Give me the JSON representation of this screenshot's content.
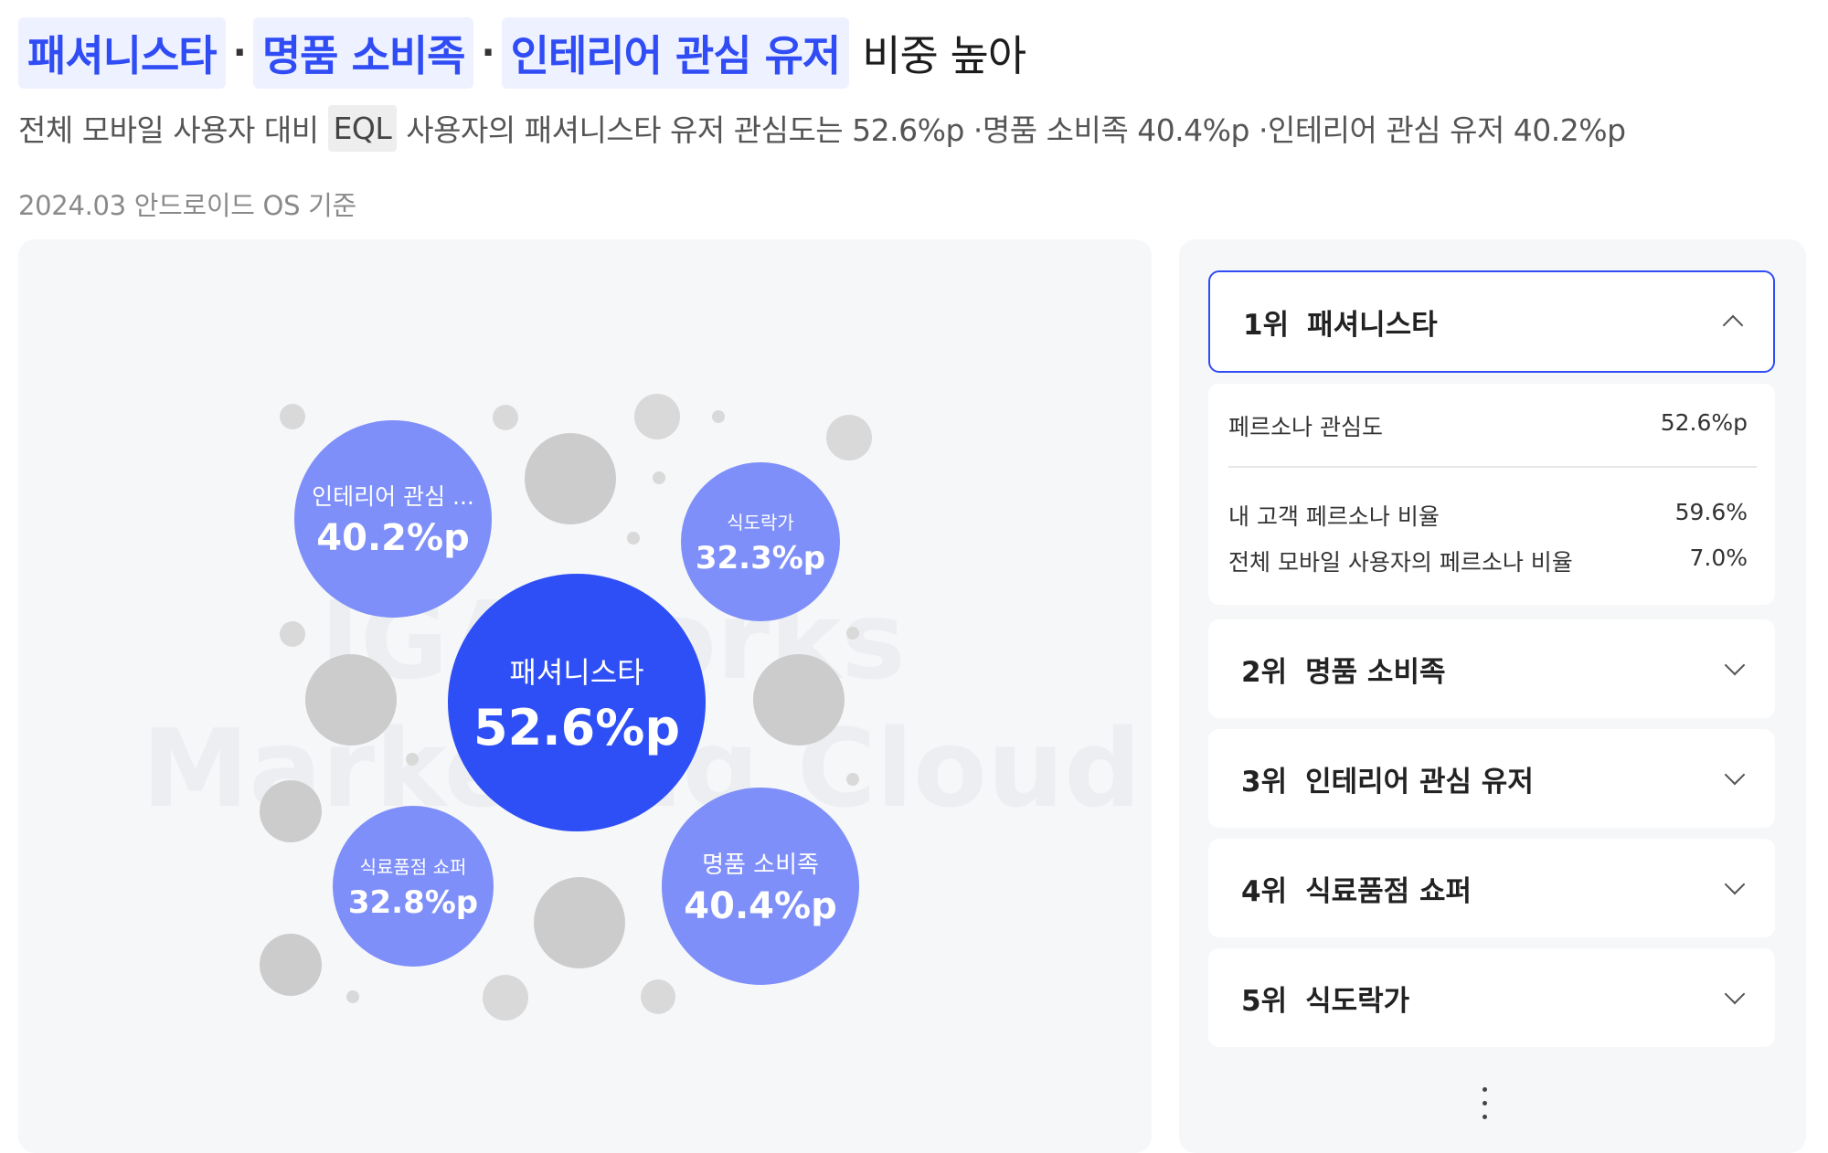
{
  "headline": {
    "chip1": "패셔니스타",
    "sep1": "·",
    "chip2": "명품 소비족",
    "sep2": "·",
    "chip3": "인테리어 관심 유저",
    "rest": "비중 높아"
  },
  "subline": {
    "before": "전체 모바일 사용자 대비",
    "chip": "EQL",
    "after": "사용자의 패셔니스타 유저 관심도는 52.6%p ·명품 소비족 40.4%p ·인테리어 관심 유저 40.2%p"
  },
  "date_note": "2024.03 안드로이드 OS 기준",
  "watermark": {
    "line1": "IGAWorks",
    "line2": "Marketing Cloud"
  },
  "bubbles": [
    {
      "label": "패셔니스타",
      "value": "52.6%p"
    },
    {
      "label": "명품 소비족",
      "value": "40.4%p"
    },
    {
      "label": "인테리어 관심 ...",
      "value": "40.2%p"
    },
    {
      "label": "식료품점 쇼퍼",
      "value": "32.8%p"
    },
    {
      "label": "식도락가",
      "value": "32.3%p"
    }
  ],
  "ranking": {
    "items": [
      {
        "rank": "1위",
        "name": "패셔니스타",
        "expanded": true
      },
      {
        "rank": "2위",
        "name": "명품 소비족",
        "expanded": false
      },
      {
        "rank": "3위",
        "name": "인테리어 관심 유저",
        "expanded": false
      },
      {
        "rank": "4위",
        "name": "식료품점 쇼퍼",
        "expanded": false
      },
      {
        "rank": "5위",
        "name": "식도락가",
        "expanded": false
      }
    ],
    "detail": {
      "interest_label": "페르소나 관심도",
      "interest_value": "52.6%p",
      "my_ratio_label": "내 고객 페르소나 비율",
      "my_ratio_value": "59.6%",
      "all_ratio_label": "전체 모바일 사용자의 페르소나 비율",
      "all_ratio_value": "7.0%"
    }
  },
  "colors": {
    "accent": "#2e4ff5",
    "bubble_secondary": "#7e8ff9",
    "chip_bg": "#eef1ff",
    "panel_bg": "#f6f7f9"
  }
}
